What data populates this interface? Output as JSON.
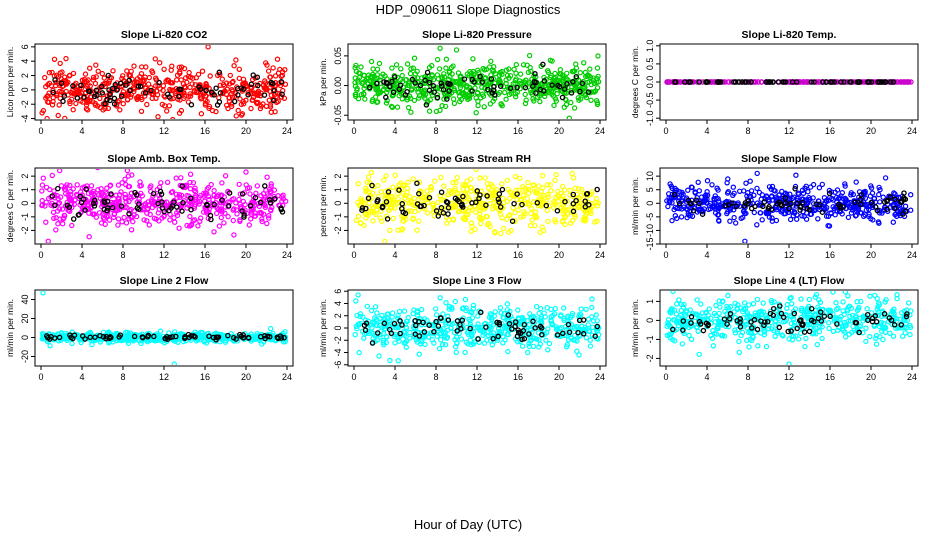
{
  "title": "HDP_090611  Slope Diagnostics",
  "common_xlabel": "Hour of Day (UTC)",
  "colors": {
    "ref_points": "#000000"
  },
  "chart_data": [
    {
      "type": "scatter",
      "title": "Slope Li-820 CO2",
      "ylabel": "Licor ppm per min.",
      "color": "#ff0000",
      "xlim": [
        0,
        24
      ],
      "ylim": [
        -4.2,
        6.4
      ],
      "xticks": [
        0,
        4,
        8,
        12,
        16,
        20,
        24
      ],
      "yticks": [
        -4,
        -2,
        0,
        2,
        4,
        6
      ],
      "cloud": {
        "center": 0,
        "spread": 1.6,
        "n": 500
      },
      "outliers": [
        [
          16.3,
          6
        ],
        [
          0.6,
          -4
        ]
      ]
    },
    {
      "type": "scatter",
      "title": "Slope Li-820 Pressure",
      "ylabel": "kPa per min.",
      "color": "#00cc00",
      "xlim": [
        0,
        24
      ],
      "ylim": [
        -0.058,
        0.07
      ],
      "xticks": [
        0,
        4,
        8,
        12,
        16,
        20,
        24
      ],
      "yticks": [
        -0.05,
        0,
        0.05
      ],
      "ytick_labels": [
        "-0.05",
        "0.00",
        "0.05"
      ],
      "cloud": {
        "center": 0,
        "spread": 0.017,
        "n": 600
      },
      "outliers": [
        [
          10,
          0.06
        ],
        [
          21,
          -0.055
        ]
      ]
    },
    {
      "type": "scatter",
      "title": "Slope Li-820 Temp.",
      "ylabel": "degrees C per min.",
      "color": "#cc00cc",
      "xlim": [
        0,
        24
      ],
      "ylim": [
        -1.05,
        1.05
      ],
      "xticks": [
        0,
        4,
        8,
        12,
        16,
        20,
        24
      ],
      "yticks": [
        -1,
        -0.5,
        0,
        0.5,
        1
      ],
      "ytick_labels": [
        "-1.0",
        "-0.5",
        "0.0",
        "0.5",
        "1.0"
      ],
      "cloud": {
        "center": 0,
        "spread": 0,
        "n": 220
      },
      "outliers": []
    },
    {
      "type": "scatter",
      "title": "Slope Amb. Box Temp.",
      "ylabel": "degrees C per min.",
      "color": "#ff00ff",
      "xlim": [
        0,
        24
      ],
      "ylim": [
        -3,
        2.6
      ],
      "xticks": [
        0,
        4,
        8,
        12,
        16,
        20,
        24
      ],
      "yticks": [
        -2,
        -1,
        0,
        1,
        2
      ],
      "cloud": {
        "center": 0,
        "spread": 0.9,
        "n": 520
      },
      "outliers": [
        [
          0.7,
          -2.8
        ],
        [
          20,
          2.3
        ]
      ]
    },
    {
      "type": "scatter",
      "title": "Slope Gas Stream RH",
      "ylabel": "percent per min.",
      "color": "#ffff00",
      "xlim": [
        0,
        24
      ],
      "ylim": [
        -3,
        2.6
      ],
      "xticks": [
        0,
        4,
        8,
        12,
        16,
        20,
        24
      ],
      "yticks": [
        -2,
        -1,
        0,
        1,
        2
      ],
      "cloud": {
        "center": 0,
        "spread": 0.9,
        "n": 500
      },
      "outliers": [
        [
          3,
          -2.8
        ]
      ]
    },
    {
      "type": "scatter",
      "title": "Slope Sample Flow",
      "ylabel": "ml/min per min.",
      "color": "#0000ff",
      "xlim": [
        0,
        24
      ],
      "ylim": [
        -15,
        13
      ],
      "xticks": [
        0,
        4,
        8,
        12,
        16,
        20,
        24
      ],
      "yticks": [
        -15,
        -10,
        -5,
        0,
        5,
        10
      ],
      "cloud": {
        "center": 0,
        "spread": 3.2,
        "n": 520
      },
      "outliers": [
        [
          7.7,
          -14
        ],
        [
          8.9,
          11
        ]
      ]
    },
    {
      "type": "scatter",
      "title": "Slope Line 2 Flow",
      "ylabel": "ml/min per min.",
      "color": "#00ffff",
      "xlim": [
        0,
        24
      ],
      "ylim": [
        -30,
        50
      ],
      "xticks": [
        0,
        4,
        8,
        12,
        16,
        20,
        24
      ],
      "yticks": [
        -20,
        0,
        20,
        40
      ],
      "cloud": {
        "center": 0,
        "spread": 2.5,
        "n": 500
      },
      "outliers": [
        [
          0.2,
          47
        ],
        [
          13,
          -28
        ]
      ]
    },
    {
      "type": "scatter",
      "title": "Slope Line 3 Flow",
      "ylabel": "ml/min per min.",
      "color": "#00ffff",
      "xlim": [
        0,
        24
      ],
      "ylim": [
        -6.2,
        6.2
      ],
      "xticks": [
        0,
        4,
        8,
        12,
        16,
        20,
        24
      ],
      "yticks": [
        -6,
        -4,
        -2,
        0,
        2,
        4,
        6
      ],
      "cloud": {
        "center": 0,
        "spread": 1.7,
        "n": 520
      },
      "outliers": [
        [
          0.4,
          5.4
        ],
        [
          3.5,
          -5.3
        ]
      ]
    },
    {
      "type": "scatter",
      "title": "Slope Line 4 (LT) Flow",
      "ylabel": "ml/min per min.",
      "color": "#00ffff",
      "xlim": [
        0,
        24
      ],
      "ylim": [
        -2.4,
        1.6
      ],
      "xticks": [
        0,
        4,
        8,
        12,
        16,
        20,
        24
      ],
      "yticks": [
        -2,
        -1,
        0,
        1
      ],
      "cloud": {
        "center": 0,
        "spread": 0.55,
        "n": 520
      },
      "outliers": [
        [
          12,
          -2.3
        ],
        [
          17.5,
          1.5
        ]
      ]
    }
  ]
}
